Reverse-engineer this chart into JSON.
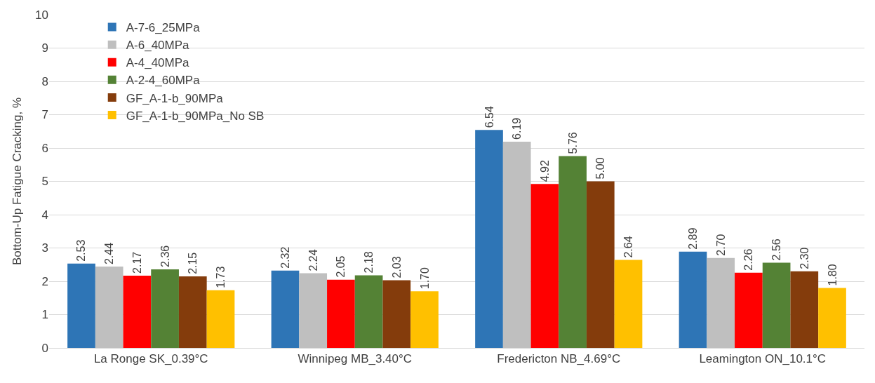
{
  "chart_data": {
    "type": "bar",
    "ylabel": "Bottom-Up Fatigue Cracking, %",
    "categories": [
      "La Ronge SK_0.39°C",
      "Winnipeg MB_3.40°C",
      "Fredericton NB_4.69°C",
      "Leamington ON_10.1°C"
    ],
    "series": [
      {
        "name": "A-7-6_25MPa",
        "color": "#2e75b6",
        "values": [
          2.53,
          2.32,
          6.54,
          2.89
        ],
        "value_labels": [
          "2.53",
          "2.32",
          "6.54",
          "2.89"
        ]
      },
      {
        "name": "A-6_40MPa",
        "color": "#bfbfbf",
        "values": [
          2.44,
          2.24,
          6.19,
          2.7
        ],
        "value_labels": [
          "2.44",
          "2.24",
          "6.19",
          "2.70"
        ]
      },
      {
        "name": "A-4_40MPa",
        "color": "#ff0000",
        "values": [
          2.17,
          2.05,
          4.92,
          2.26
        ],
        "value_labels": [
          "2.17",
          "2.05",
          "4.92",
          "2.26"
        ]
      },
      {
        "name": "A-2-4_60MPa",
        "color": "#548235",
        "values": [
          2.36,
          2.18,
          5.76,
          2.56
        ],
        "value_labels": [
          "2.36",
          "2.18",
          "5.76",
          "2.56"
        ]
      },
      {
        "name": "GF_A-1-b_90MPa",
        "color": "#843c0c",
        "values": [
          2.15,
          2.03,
          5.0,
          2.3
        ],
        "value_labels": [
          "2.15",
          "2.03",
          "5.00",
          "2.30"
        ]
      },
      {
        "name": "GF_A-1-b_90MPa_No SB",
        "color": "#ffc000",
        "values": [
          1.73,
          1.7,
          2.64,
          1.8
        ],
        "value_labels": [
          "1.73",
          "1.70",
          "2.64",
          "1.80"
        ]
      }
    ],
    "ylim": [
      0,
      10
    ],
    "yticks": [
      0,
      1,
      2,
      3,
      4,
      5,
      6,
      7,
      8,
      9,
      10
    ],
    "grid": "y",
    "legend": "top left"
  }
}
